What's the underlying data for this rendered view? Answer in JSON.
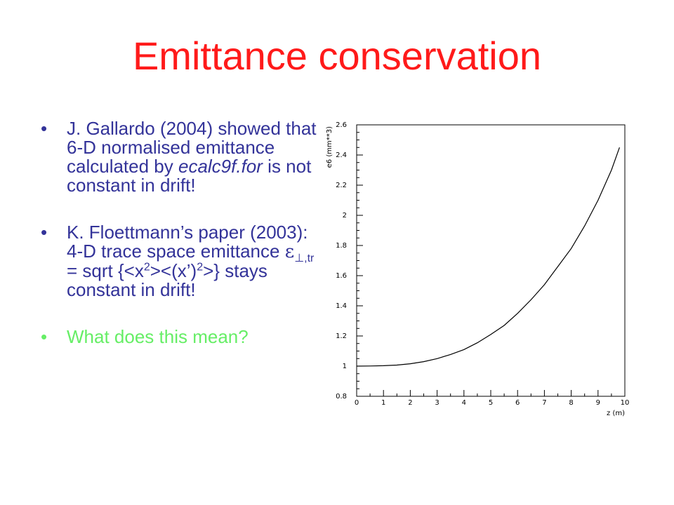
{
  "slide": {
    "title": "Emittance conservation",
    "bullet_char": "•",
    "bullets": [
      {
        "author": "J. Gallardo (2004) showed that 6-D normalised emittance calculated by ",
        "code": "ecalc9f.for",
        "rest": " is not constant in drift!"
      },
      {
        "line1": "K. Floettmann’s paper (2003): 4-D trace space emittance ",
        "eps_symbol": "ε",
        "eps_sub": "⊥,tr",
        "eq_a": " = sqrt {<x",
        "sup1": "2",
        "eq_b": "><(x’)",
        "sup2": "2",
        "eq_c": ">} stays constant in drift!"
      },
      {
        "text": "What does this mean?"
      }
    ],
    "colors": {
      "title": "#ff1a1a",
      "bullet_text": "#333399",
      "question": "#66ee66"
    }
  },
  "chart_data": {
    "type": "line",
    "xlabel": "z (m)",
    "ylabel": "e6 (mm**3)",
    "xlim": [
      0,
      10
    ],
    "ylim": [
      0.8,
      2.6
    ],
    "xticks": [
      0,
      1,
      2,
      3,
      4,
      5,
      6,
      7,
      8,
      9,
      10
    ],
    "yticks": [
      0.8,
      1,
      1.2,
      1.4,
      1.6,
      1.8,
      2,
      2.2,
      2.4,
      2.6
    ],
    "grid": false,
    "x": [
      0,
      0.5,
      1,
      1.5,
      2,
      2.5,
      3,
      3.5,
      4,
      4.5,
      5,
      5.5,
      6,
      6.5,
      7,
      7.5,
      8,
      8.5,
      9,
      9.5,
      9.8
    ],
    "y": [
      1.0,
      1.001,
      1.003,
      1.007,
      1.016,
      1.03,
      1.05,
      1.077,
      1.11,
      1.155,
      1.21,
      1.27,
      1.35,
      1.44,
      1.54,
      1.66,
      1.78,
      1.93,
      2.1,
      2.3,
      2.45
    ]
  }
}
